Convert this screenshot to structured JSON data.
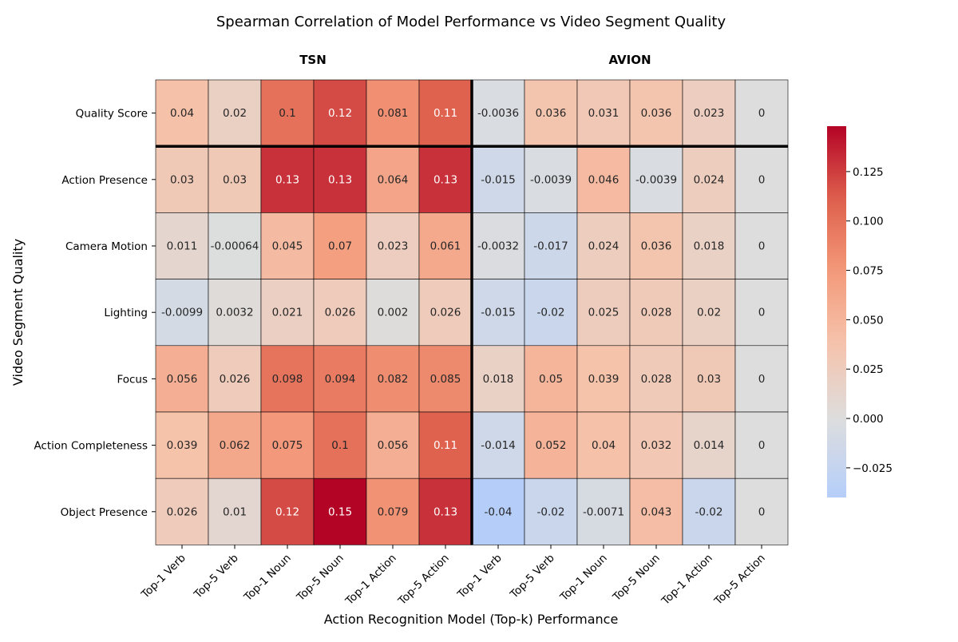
{
  "chart_data": {
    "type": "heatmap",
    "title": "Spearman Correlation of Model Performance vs Video Segment Quality",
    "xlabel": "Action Recognition Model (Top-k) Performance",
    "ylabel": "Video Segment Quality",
    "groups": [
      "TSN",
      "AVION"
    ],
    "columns": [
      "Top-1 Verb",
      "Top-5 Verb",
      "Top-1 Noun",
      "Top-5 Noun",
      "Top-1 Action",
      "Top-5 Action",
      "Top-1 Verb",
      "Top-5 Verb",
      "Top-1 Noun",
      "Top-5 Noun",
      "Top-1 Action",
      "Top-5 Action"
    ],
    "rows": [
      "Quality Score",
      "Action Presence",
      "Camera Motion",
      "Lighting",
      "Focus",
      "Action Completeness",
      "Object Presence"
    ],
    "values": [
      [
        0.04,
        0.02,
        0.1,
        0.12,
        0.081,
        0.11,
        -0.0036,
        0.036,
        0.031,
        0.036,
        0.023,
        0
      ],
      [
        0.03,
        0.03,
        0.13,
        0.13,
        0.064,
        0.13,
        -0.015,
        -0.0039,
        0.046,
        -0.0039,
        0.024,
        0
      ],
      [
        0.011,
        -0.00064,
        0.045,
        0.07,
        0.023,
        0.061,
        -0.0032,
        -0.017,
        0.024,
        0.036,
        0.018,
        0
      ],
      [
        -0.0099,
        0.0032,
        0.021,
        0.026,
        0.002,
        0.026,
        -0.015,
        -0.02,
        0.025,
        0.028,
        0.02,
        0
      ],
      [
        0.056,
        0.026,
        0.098,
        0.094,
        0.082,
        0.085,
        0.018,
        0.05,
        0.039,
        0.028,
        0.03,
        0
      ],
      [
        0.039,
        0.062,
        0.075,
        0.1,
        0.056,
        0.11,
        -0.014,
        0.052,
        0.04,
        0.032,
        0.014,
        0
      ],
      [
        0.026,
        0.01,
        0.12,
        0.15,
        0.079,
        0.13,
        -0.04,
        -0.02,
        -0.0071,
        0.043,
        -0.02,
        0
      ]
    ],
    "colormap": "coolwarm",
    "center": 0,
    "vrange": [
      -0.04,
      0.148
    ],
    "colorbar_ticks": [
      "−0.025",
      "0.000",
      "0.025",
      "0.050",
      "0.075",
      "0.100",
      "0.125"
    ],
    "colorbar_tick_values": [
      -0.025,
      0,
      0.025,
      0.05,
      0.075,
      0.1,
      0.125
    ],
    "separators": "after first row and after sixth column"
  }
}
